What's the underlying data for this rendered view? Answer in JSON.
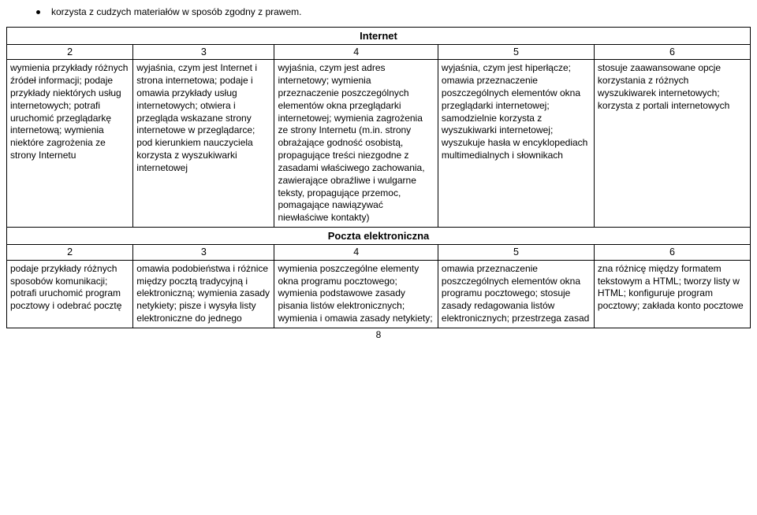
{
  "bullet": "korzysta z cudzych materiałów w sposób zgodny z prawem.",
  "section1_title": "Internet",
  "section2_title": "Poczta elektroniczna",
  "nums": [
    "2",
    "3",
    "4",
    "5",
    "6"
  ],
  "internet_row": {
    "c1": "wymienia przykłady różnych źródeł informacji; podaje przykłady niektórych usług internetowych; potrafi uruchomić przeglądarkę internetową; wymienia niektóre zagrożenia ze strony Internetu",
    "c2": "wyjaśnia, czym jest Internet i strona internetowa; podaje i omawia przykłady usług internetowych; otwiera i przegląda wskazane strony internetowe w przeglądarce; pod kierunkiem nauczyciela korzysta z wyszukiwarki internetowej",
    "c3": "wyjaśnia, czym jest adres internetowy; wymienia przeznaczenie poszczególnych elementów okna przeglądarki internetowej; wymienia zagrożenia ze strony Internetu (m.in. strony obrażające godność osobistą, propagujące treści niezgodne z zasadami właściwego zachowania, zawierające obraźliwe i wulgarne teksty, propagujące przemoc, pomagające nawiązywać niewłaściwe kontakty)",
    "c4": "wyjaśnia, czym jest hiperłącze; omawia przeznaczenie poszczególnych elementów okna przeglądarki internetowej; samodzielnie korzysta z wyszukiwarki internetowej; wyszukuje hasła w encyklopediach multimedialnych i słownikach",
    "c5": "stosuje zaawansowane opcje korzystania z różnych wyszukiwarek internetowych; korzysta z portali internetowych"
  },
  "poczta_row": {
    "c1": "podaje przykłady różnych sposobów komunikacji; potrafi uruchomić program pocztowy i odebrać pocztę",
    "c2": "omawia podobieństwa i różnice między pocztą tradycyjną i elektroniczną; wymienia zasady netykiety; pisze i wysyła listy elektroniczne do jednego",
    "c3": "wymienia poszczególne elementy okna programu pocztowego; wymienia podstawowe zasady pisania listów elektronicznych; wymienia i omawia zasady netykiety;",
    "c4": "omawia przeznaczenie poszczególnych elementów okna programu pocztowego; stosuje zasady redagowania listów elektronicznych; przestrzega zasad",
    "c5": "zna różnicę między formatem tekstowym a HTML; tworzy listy w HTML; konfiguruje program pocztowy; zakłada konto pocztowe"
  },
  "page_number": "8"
}
